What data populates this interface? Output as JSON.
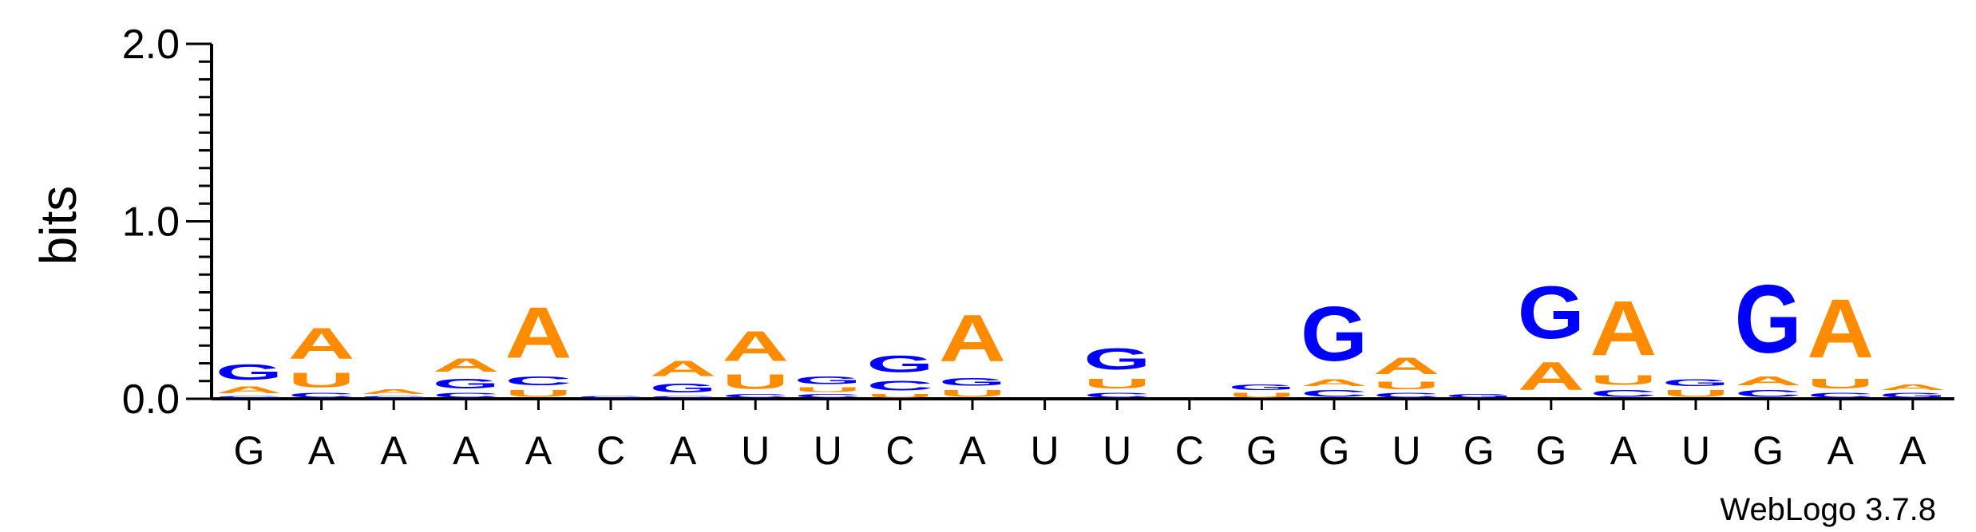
{
  "chart_data": {
    "type": "sequence-logo",
    "ylabel": "bits",
    "ylim": [
      0,
      2.0
    ],
    "yticks": [
      "0.0",
      "1.0",
      "2.0"
    ],
    "credit": "WebLogo 3.7.8",
    "colors": {
      "A": "#FF8C00",
      "U": "#FF8C00",
      "G": "#0000FF",
      "C": "#0000FF"
    },
    "consensus": [
      "G",
      "A",
      "A",
      "A",
      "A",
      "C",
      "A",
      "U",
      "U",
      "C",
      "A",
      "U",
      "U",
      "C",
      "G",
      "G",
      "U",
      "G",
      "G",
      "A",
      "U",
      "G",
      "A",
      "A"
    ],
    "positions": [
      [
        {
          "l": "C",
          "h": 0.02
        },
        {
          "l": "A",
          "h": 0.06
        },
        {
          "l": "G",
          "h": 0.14
        }
      ],
      [
        {
          "l": "C",
          "h": 0.04
        },
        {
          "l": "U",
          "h": 0.13
        },
        {
          "l": "A",
          "h": 0.28
        }
      ],
      [
        {
          "l": "C",
          "h": 0.02
        },
        {
          "l": "A",
          "h": 0.04
        }
      ],
      [
        {
          "l": "C",
          "h": 0.04
        },
        {
          "l": "G",
          "h": 0.09
        },
        {
          "l": "A",
          "h": 0.12
        }
      ],
      [
        {
          "l": "U",
          "h": 0.06
        },
        {
          "l": "C",
          "h": 0.08
        },
        {
          "l": "A",
          "h": 0.46
        }
      ],
      [
        {
          "l": "C",
          "h": 0.02
        }
      ],
      [
        {
          "l": "C",
          "h": 0.02
        },
        {
          "l": "G",
          "h": 0.08
        },
        {
          "l": "A",
          "h": 0.14
        }
      ],
      [
        {
          "l": "C",
          "h": 0.03
        },
        {
          "l": "U",
          "h": 0.13
        },
        {
          "l": "A",
          "h": 0.27
        }
      ],
      [
        {
          "l": "C",
          "h": 0.03
        },
        {
          "l": "U",
          "h": 0.04
        },
        {
          "l": "G",
          "h": 0.07
        }
      ],
      [
        {
          "l": "U",
          "h": 0.03
        },
        {
          "l": "C",
          "h": 0.09
        },
        {
          "l": "G",
          "h": 0.15
        }
      ],
      [
        {
          "l": "U",
          "h": 0.06
        },
        {
          "l": "G",
          "h": 0.07
        },
        {
          "l": "A",
          "h": 0.42
        }
      ],
      [],
      [
        {
          "l": "C",
          "h": 0.04
        },
        {
          "l": "U",
          "h": 0.09
        },
        {
          "l": "G",
          "h": 0.19
        }
      ],
      [],
      [
        {
          "l": "U",
          "h": 0.04
        },
        {
          "l": "G",
          "h": 0.05
        }
      ],
      [
        {
          "l": "C",
          "h": 0.06
        },
        {
          "l": "A",
          "h": 0.06
        },
        {
          "l": "G",
          "h": 0.49
        }
      ],
      [
        {
          "l": "C",
          "h": 0.04
        },
        {
          "l": "U",
          "h": 0.07
        },
        {
          "l": "A",
          "h": 0.15
        }
      ],
      [
        {
          "l": "G",
          "h": 0.03
        }
      ],
      [
        {
          "l": "A",
          "h": 0.25
        },
        {
          "l": "G",
          "h": 0.47
        }
      ],
      [
        {
          "l": "C",
          "h": 0.06
        },
        {
          "l": "U",
          "h": 0.09
        },
        {
          "l": "A",
          "h": 0.49
        }
      ],
      [
        {
          "l": "U",
          "h": 0.06
        },
        {
          "l": "G",
          "h": 0.06
        }
      ],
      [
        {
          "l": "C",
          "h": 0.06
        },
        {
          "l": "A",
          "h": 0.08
        },
        {
          "l": "G",
          "h": 0.61
        }
      ],
      [
        {
          "l": "C",
          "h": 0.04
        },
        {
          "l": "U",
          "h": 0.09
        },
        {
          "l": "A",
          "h": 0.53
        }
      ],
      [
        {
          "l": "G",
          "h": 0.04
        },
        {
          "l": "A",
          "h": 0.05
        }
      ]
    ]
  }
}
